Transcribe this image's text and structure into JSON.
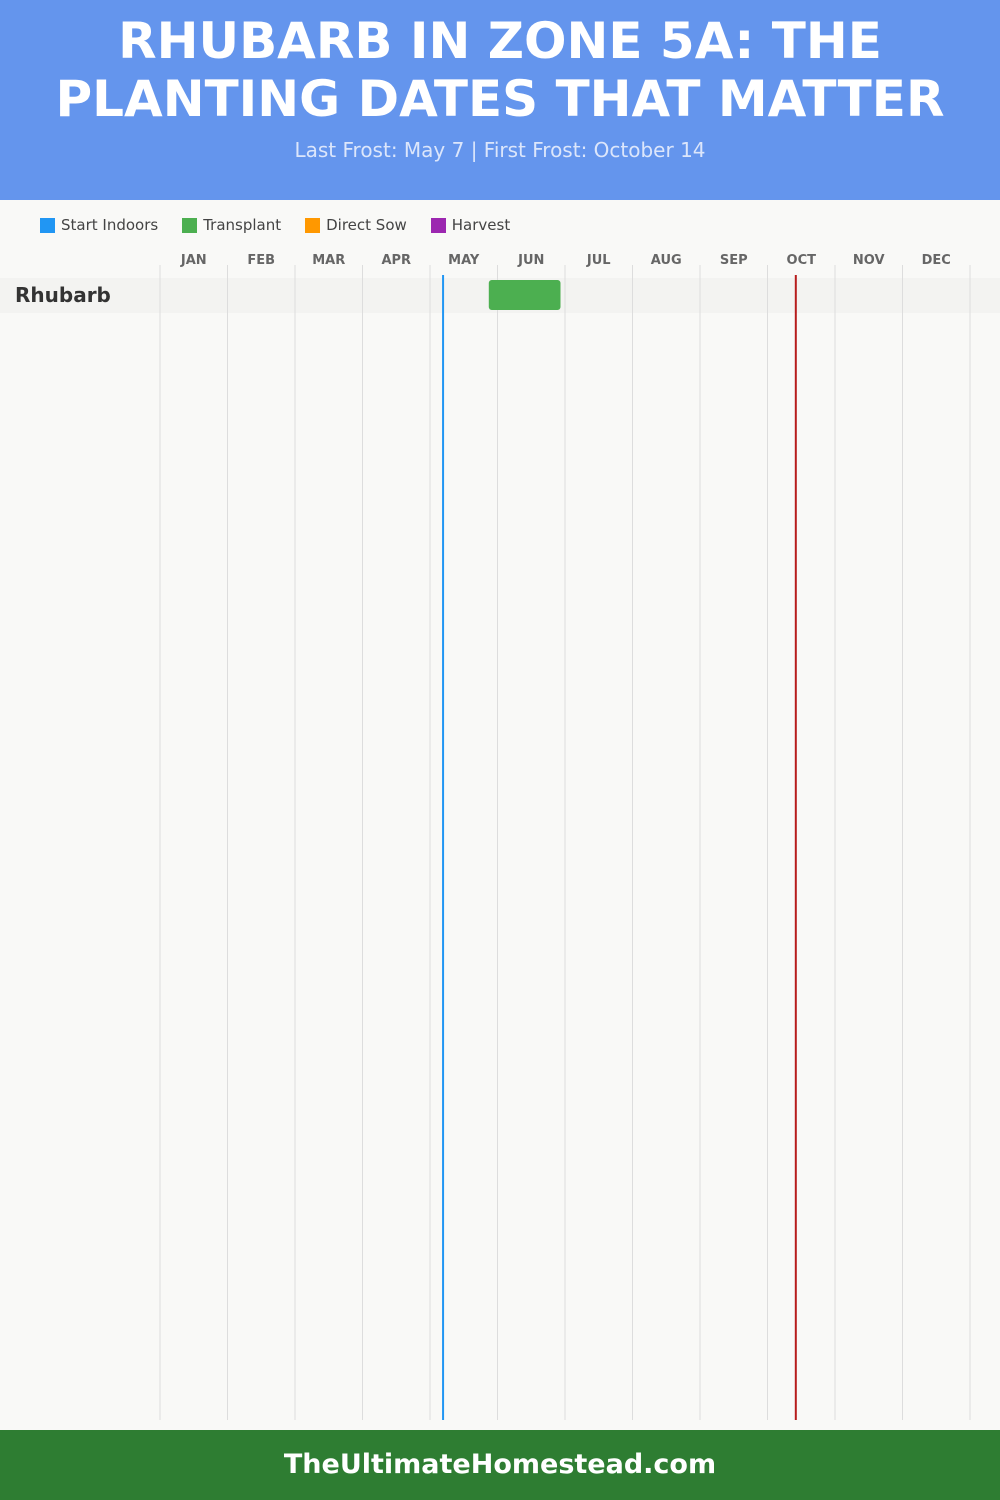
{
  "header": {
    "title": "RHUBARB IN ZONE 5A: THE PLANTING DATES THAT MATTER",
    "subtitle": "Last Frost: May 7 | First Frost: October 14"
  },
  "footer": {
    "site": "TheUltimateHomestead.com"
  },
  "chart_data": {
    "type": "gantt",
    "title": "RHUBARB IN ZONE 5A: THE PLANTING DATES THAT MATTER",
    "subtitle": "Last Frost: May 7 | First Frost: October 14",
    "months": [
      "JAN",
      "FEB",
      "MAR",
      "APR",
      "MAY",
      "JUN",
      "JUL",
      "AUG",
      "SEP",
      "OCT",
      "NOV",
      "DEC"
    ],
    "legend": [
      {
        "name": "Start Indoors",
        "color": "#2196f3"
      },
      {
        "name": "Transplant",
        "color": "#4caf50"
      },
      {
        "name": "Direct Sow",
        "color": "#ff9800"
      },
      {
        "name": "Harvest",
        "color": "#9c27b0"
      }
    ],
    "legend_placement": "top-left",
    "rows": [
      {
        "crop": "Rhubarb",
        "bars": [
          {
            "type": "Transplant",
            "start": "05-28",
            "end": "06-29"
          }
        ]
      }
    ],
    "markers": [
      {
        "label": "Last Frost",
        "date": "05-07",
        "color": "#2196f3"
      },
      {
        "label": "First Frost",
        "date": "10-14",
        "color": "#b71c1c"
      }
    ],
    "grid": true
  }
}
